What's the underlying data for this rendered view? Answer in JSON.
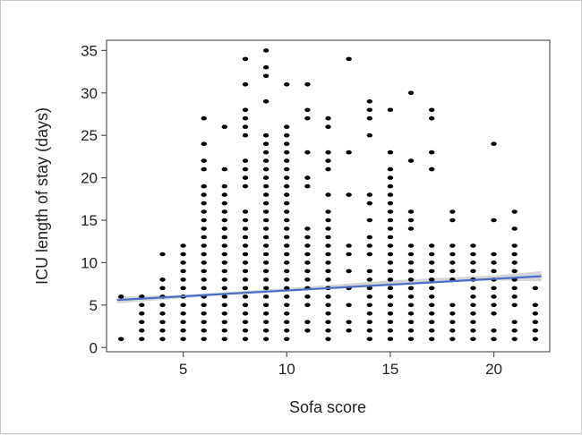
{
  "chart_data": {
    "type": "scatter",
    "title": "",
    "xlabel": "Sofa score",
    "ylabel": "ICU length of stay (days)",
    "xlim": [
      1.3,
      22.7
    ],
    "ylim": [
      -0.5,
      36.2
    ],
    "xticks": [
      5,
      10,
      15,
      20
    ],
    "yticks": [
      0,
      5,
      10,
      15,
      20,
      25,
      30,
      35
    ],
    "grid": false,
    "legend": "none",
    "marker_color": "#000000",
    "points_by_x": [
      {
        "x": 2,
        "y": [
          1,
          6
        ]
      },
      {
        "x": 3,
        "y": [
          1,
          2,
          3,
          4,
          5,
          6
        ]
      },
      {
        "x": 4,
        "y": [
          1,
          2,
          3,
          4,
          5,
          6,
          7,
          8,
          11
        ]
      },
      {
        "x": 5,
        "y": [
          1,
          2,
          3,
          4,
          5,
          6,
          7,
          8,
          9,
          10,
          11,
          12
        ]
      },
      {
        "x": 6,
        "y": [
          1,
          2,
          3,
          4,
          5,
          6,
          7,
          8,
          9,
          10,
          11,
          12,
          13,
          14,
          15,
          16,
          17,
          18,
          19,
          21,
          22,
          24,
          27
        ]
      },
      {
        "x": 7,
        "y": [
          1,
          2,
          3,
          4,
          5,
          6,
          7,
          8,
          9,
          10,
          11,
          12,
          13,
          14,
          15,
          16,
          17,
          18,
          19,
          21,
          26
        ]
      },
      {
        "x": 8,
        "y": [
          1,
          2,
          3,
          4,
          5,
          6,
          7,
          8,
          9,
          10,
          11,
          12,
          13,
          14,
          15,
          16,
          19,
          20,
          21,
          22,
          25,
          26,
          27,
          28,
          31,
          34
        ]
      },
      {
        "x": 9,
        "y": [
          1,
          2,
          3,
          4,
          5,
          6,
          7,
          8,
          9,
          10,
          11,
          12,
          13,
          14,
          15,
          16,
          17,
          18,
          19,
          20,
          21,
          22,
          23,
          24,
          25,
          29,
          32,
          33,
          35
        ]
      },
      {
        "x": 10,
        "y": [
          1,
          2,
          3,
          4,
          5,
          6,
          7,
          8,
          9,
          10,
          11,
          12,
          13,
          14,
          15,
          16,
          17,
          18,
          19,
          20,
          21,
          22,
          23,
          24,
          25,
          26,
          31
        ]
      },
      {
        "x": 11,
        "y": [
          2,
          3,
          5,
          6,
          7,
          8,
          9,
          10,
          11,
          12,
          13,
          14,
          19,
          20,
          23,
          27,
          28,
          31
        ]
      },
      {
        "x": 12,
        "y": [
          1,
          2,
          3,
          4,
          5,
          6,
          7,
          8,
          9,
          10,
          11,
          12,
          13,
          14,
          15,
          16,
          18,
          21,
          22,
          23,
          26,
          27
        ]
      },
      {
        "x": 13,
        "y": [
          2,
          3,
          5,
          7,
          9,
          11,
          12,
          18,
          23,
          34
        ]
      },
      {
        "x": 14,
        "y": [
          1,
          2,
          3,
          4,
          5,
          6,
          7,
          8,
          9,
          11,
          12,
          13,
          15,
          17,
          18,
          25,
          27,
          28,
          29
        ]
      },
      {
        "x": 15,
        "y": [
          1,
          2,
          3,
          4,
          5,
          6,
          7,
          8,
          9,
          10,
          11,
          12,
          13,
          14,
          15,
          16,
          17,
          18,
          19,
          20,
          21,
          23,
          28
        ]
      },
      {
        "x": 16,
        "y": [
          1,
          2,
          3,
          4,
          5,
          6,
          7,
          8,
          9,
          10,
          11,
          12,
          14,
          15,
          16,
          22,
          30
        ]
      },
      {
        "x": 17,
        "y": [
          1,
          2,
          3,
          4,
          5,
          6,
          7,
          8,
          9,
          10,
          11,
          12,
          21,
          23,
          27,
          28
        ]
      },
      {
        "x": 18,
        "y": [
          1,
          2,
          3,
          4,
          5,
          8,
          9,
          10,
          11,
          12,
          15,
          16
        ]
      },
      {
        "x": 19,
        "y": [
          1,
          2,
          3,
          4,
          5,
          6,
          7,
          8,
          9,
          10,
          11,
          12
        ]
      },
      {
        "x": 20,
        "y": [
          1,
          2,
          4,
          5,
          6,
          7,
          8,
          9,
          10,
          11,
          15,
          24
        ]
      },
      {
        "x": 21,
        "y": [
          1,
          2,
          3,
          5,
          6,
          7,
          8,
          9,
          10,
          11,
          12,
          14,
          16
        ]
      },
      {
        "x": 22,
        "y": [
          1,
          2,
          3,
          4,
          5,
          7
        ]
      }
    ],
    "fit_line": {
      "x": [
        1.8,
        22.3
      ],
      "y": [
        5.6,
        8.4
      ],
      "color": "#4a6fc7"
    },
    "confidence_band": {
      "x": [
        1.8,
        5,
        10,
        15,
        20,
        22.3
      ],
      "lower": [
        5.2,
        5.8,
        6.8,
        7.5,
        7.9,
        7.8
      ],
      "upper": [
        6.0,
        6.2,
        7.0,
        7.9,
        8.5,
        9.0
      ],
      "color": "#c7c7c7"
    }
  }
}
